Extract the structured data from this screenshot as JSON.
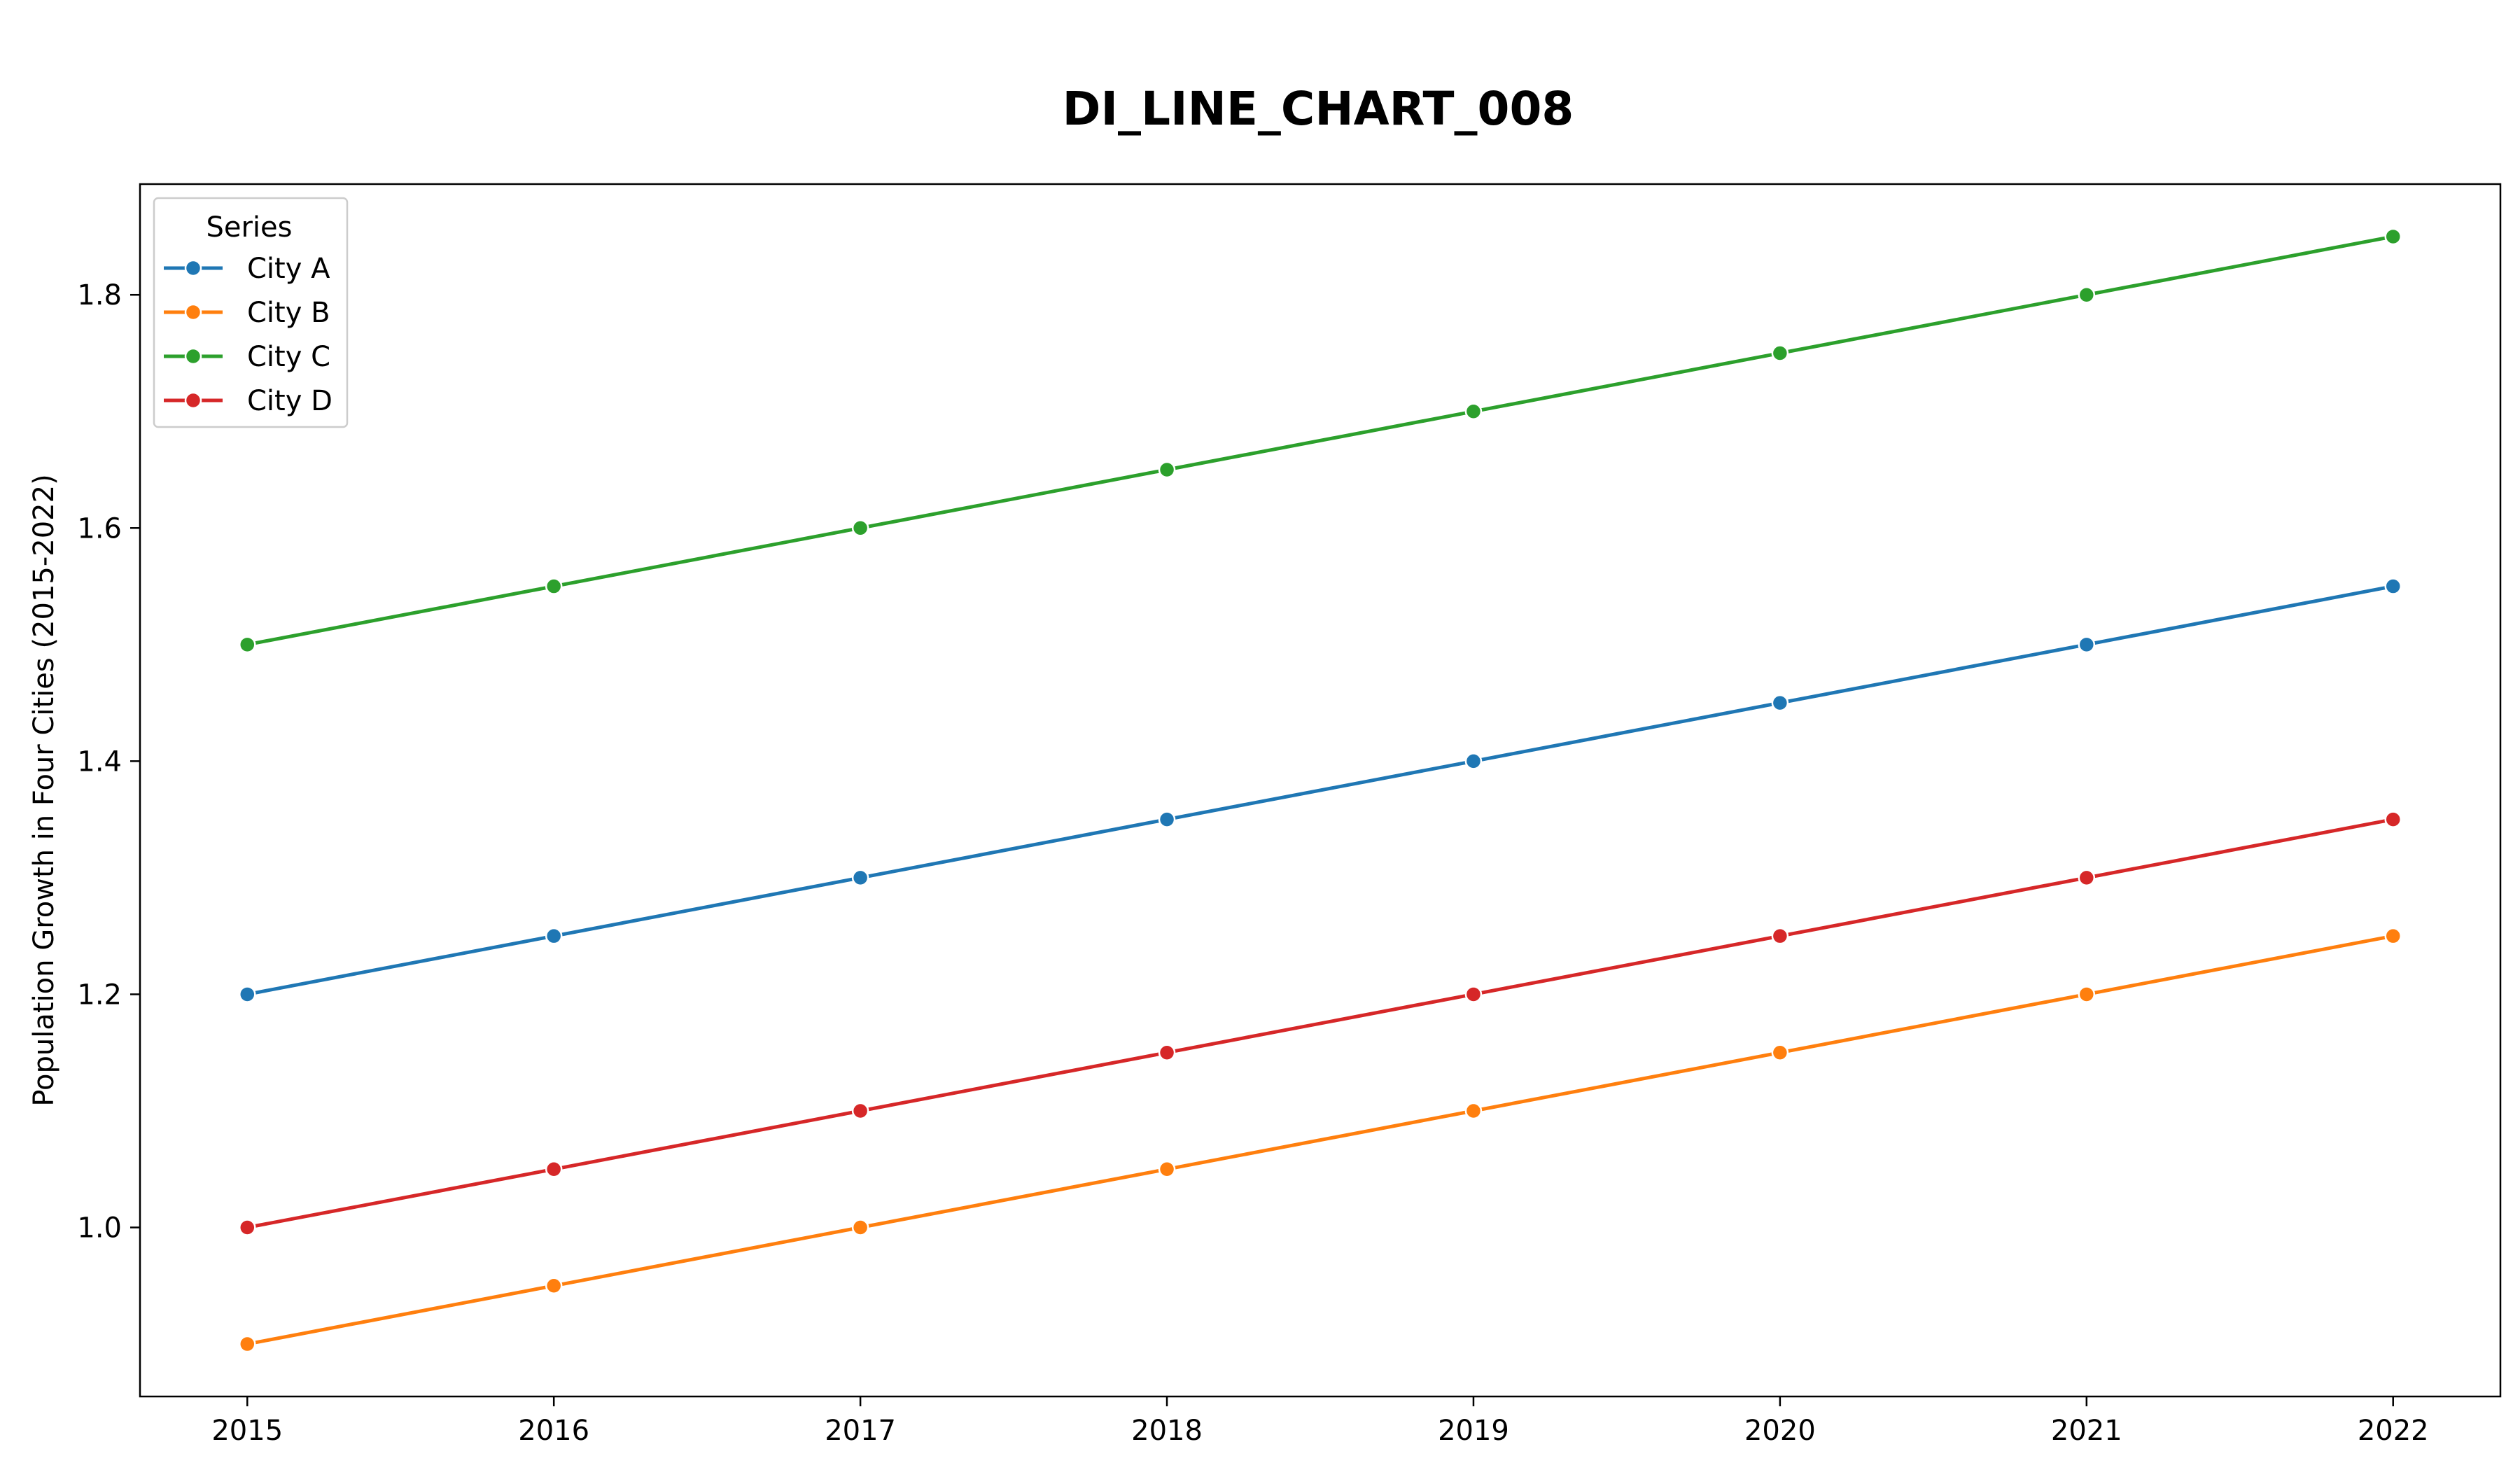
{
  "chart_data": {
    "type": "line",
    "title": "DI_LINE_CHART_008",
    "xlabel": "",
    "ylabel": "Population Growth in Four Cities (2015-2022)",
    "x": [
      2015,
      2016,
      2017,
      2018,
      2019,
      2020,
      2021,
      2022
    ],
    "xlim": [
      2014.65,
      2022.35
    ],
    "ylim": [
      0.855,
      1.895
    ],
    "yticks": [
      "1.0",
      "1.2",
      "1.4",
      "1.6",
      "1.8"
    ],
    "grid": false,
    "markers": true,
    "legend": {
      "title": "Series",
      "placement": "top-left"
    },
    "series": [
      {
        "name": "City A",
        "color": "#1f77b4",
        "values": [
          1.2,
          1.25,
          1.3,
          1.35,
          1.4,
          1.45,
          1.5,
          1.55
        ]
      },
      {
        "name": "City B",
        "color": "#ff7f0e",
        "values": [
          0.9,
          0.95,
          1.0,
          1.05,
          1.1,
          1.15,
          1.2,
          1.25
        ]
      },
      {
        "name": "City C",
        "color": "#2ca02c",
        "values": [
          1.5,
          1.55,
          1.6,
          1.65,
          1.7,
          1.75,
          1.8,
          1.85
        ]
      },
      {
        "name": "City D",
        "color": "#d62728",
        "values": [
          1.0,
          1.05,
          1.1,
          1.15,
          1.2,
          1.25,
          1.3,
          1.35
        ]
      }
    ]
  }
}
